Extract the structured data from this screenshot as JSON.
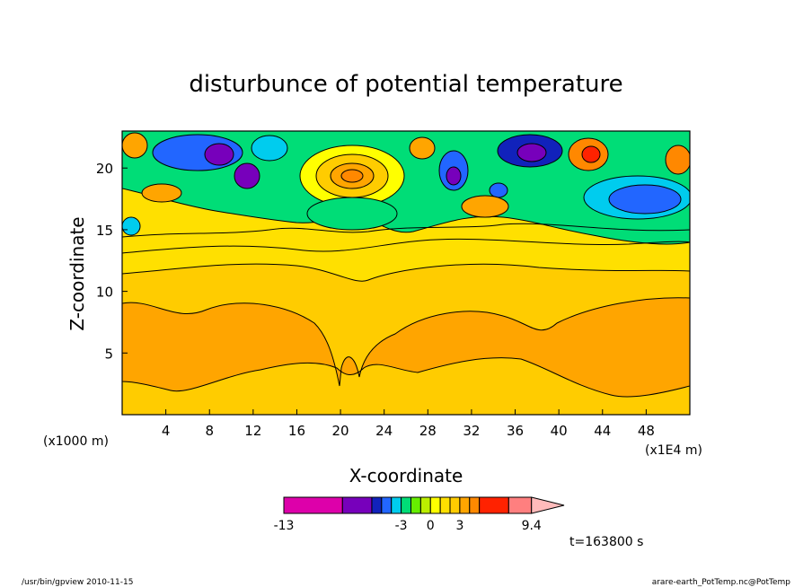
{
  "chart_data": {
    "type": "heatmap",
    "title": "disturbunce of potential temperature",
    "xlabel": "X-coordinate",
    "ylabel": "Z-coordinate",
    "x_unit_label": "(x1E4 m)",
    "y_unit_label": "(x1000 m)",
    "xlim": [
      0,
      52
    ],
    "ylim": [
      0,
      23
    ],
    "x_ticks": [
      4,
      8,
      12,
      16,
      20,
      24,
      28,
      32,
      36,
      40,
      44,
      48
    ],
    "y_ticks": [
      5,
      10,
      15,
      20
    ],
    "time_label": "t=163800 s",
    "colorbar": {
      "levels": [
        -13,
        -8,
        -6,
        -5,
        -4,
        -3,
        -2,
        -1,
        0,
        1,
        2,
        3,
        4,
        6,
        8,
        9.4
      ],
      "colors": [
        "#dd00aa",
        "#7700bb",
        "#1122bb",
        "#2266ff",
        "#00ccee",
        "#00dd77",
        "#66ee00",
        "#bbee00",
        "#ffff00",
        "#ffe000",
        "#ffcc00",
        "#ffa500",
        "#ff8800",
        "#ff2200",
        "#ff7f7f",
        "#ffbbbb"
      ],
      "labels": [
        {
          "text": "-13",
          "value": -13
        },
        {
          "text": "-3",
          "value": -3
        },
        {
          "text": "0",
          "value": 0
        },
        {
          "text": "3",
          "value": 3
        },
        {
          "text": "9.4",
          "value": 9.4
        }
      ]
    }
  },
  "footer": {
    "left": "/usr/bin/gpview   2010-11-15",
    "right": "arare-earth_PotTemp.nc@PotTemp"
  }
}
